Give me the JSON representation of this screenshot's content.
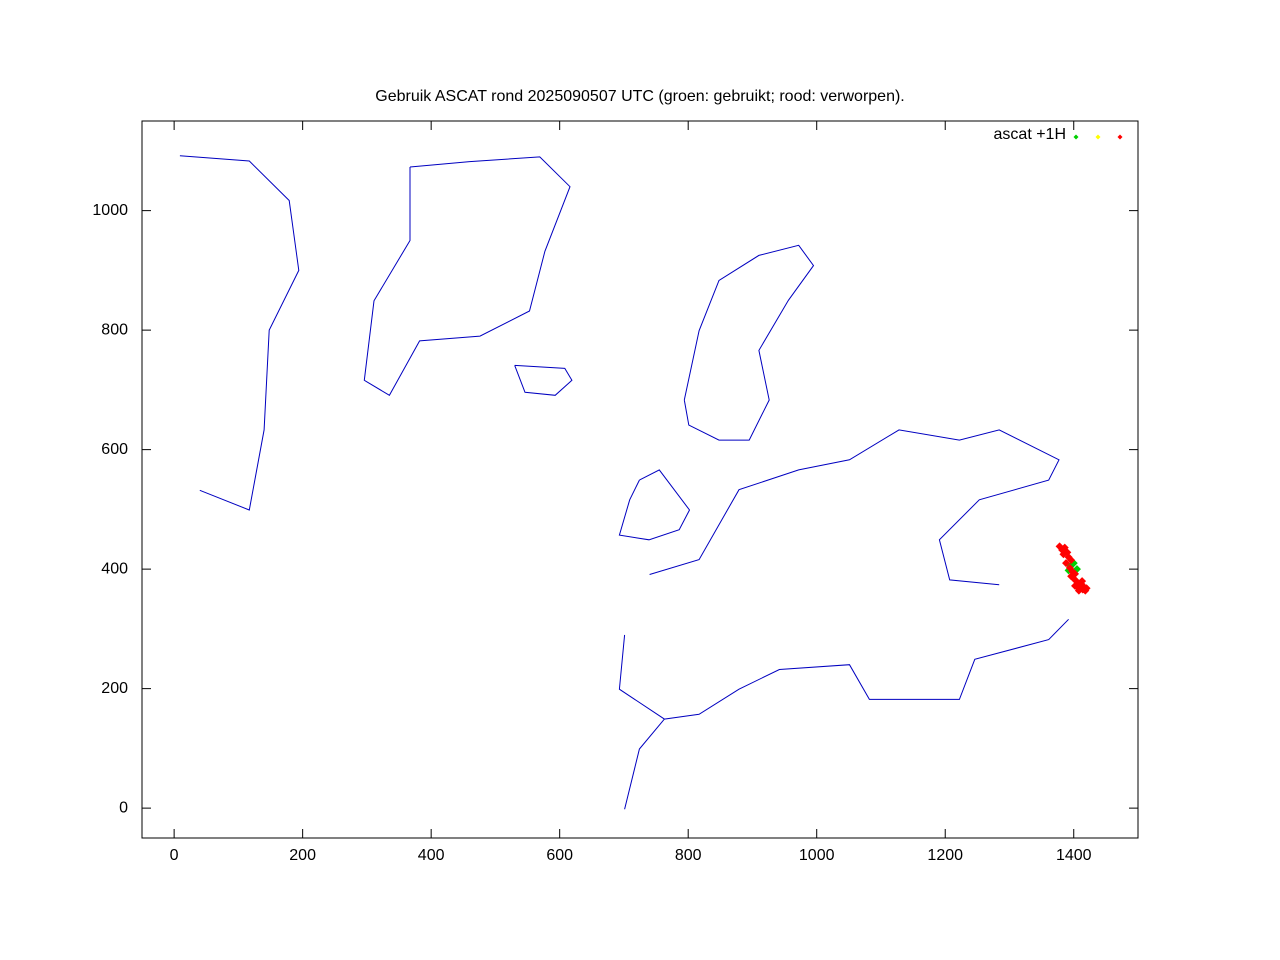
{
  "chart_data": {
    "type": "scatter",
    "title": "Gebruik ASCAT rond 2025090507 UTC (groen: gebruikt; rood: verworpen).",
    "legend_label": "ascat +1H",
    "legend": "top-right",
    "xlim": [
      -50,
      1500
    ],
    "ylim": [
      -50,
      1150
    ],
    "xticks": [
      0,
      200,
      400,
      600,
      800,
      1000,
      1200,
      1400
    ],
    "yticks": [
      0,
      200,
      400,
      600,
      800,
      1000
    ],
    "coastline": {
      "color": "#0000c0",
      "x": [
        367,
        460,
        569,
        616,
        577,
        553,
        476,
        382,
        335,
        296,
        311,
        367,
        367,
        null,
        530,
        608,
        619,
        593,
        546,
        530,
        null,
        794,
        817,
        848,
        910,
        972,
        995,
        956,
        910,
        926,
        895,
        848,
        801,
        794,
        null,
        724,
        755,
        802,
        786,
        739,
        693,
        709,
        724,
        null,
        740,
        817,
        879,
        972,
        1051,
        1128,
        1222,
        1284,
        1377,
        1361,
        1253,
        1191,
        1207,
        1284,
        null,
        701,
        693,
        763,
        817,
        879,
        942,
        1051,
        1082,
        1222,
        1246,
        1361,
        1392,
        null,
        40,
        117,
        140,
        148,
        194,
        179,
        117,
        9,
        null,
        817,
        763,
        724,
        701
      ],
      "y": [
        1073,
        1082,
        1090,
        1040,
        932,
        832,
        790,
        782,
        691,
        716,
        849,
        950,
        1073,
        null,
        741,
        736,
        716,
        691,
        696,
        741,
        null,
        683,
        799,
        883,
        925,
        942,
        908,
        850,
        766,
        683,
        616,
        616,
        641,
        683,
        null,
        549,
        566,
        499,
        466,
        449,
        457,
        516,
        549,
        null,
        391,
        416,
        533,
        566,
        583,
        633,
        616,
        633,
        583,
        549,
        516,
        449,
        382,
        374,
        null,
        290,
        199,
        149,
        157,
        199,
        232,
        240,
        182,
        182,
        249,
        282,
        316,
        null,
        532,
        499,
        633,
        800,
        900,
        1017,
        1083,
        1092,
        null,
        157,
        149,
        99,
        -2
      ]
    },
    "series": [
      {
        "color": "#00d000",
        "x": [
          1395,
          1400,
          1405,
          1392
        ],
        "y": [
          405,
          410,
          400,
          398
        ]
      },
      {
        "color": "#ffff00",
        "x": [],
        "y": []
      },
      {
        "color": "#ff0000",
        "x": [
          1378,
          1382,
          1386,
          1390,
          1384,
          1392,
          1396,
          1388,
          1394,
          1398,
          1402,
          1396,
          1400,
          1404,
          1408,
          1402,
          1406,
          1410,
          1414,
          1408,
          1412,
          1416,
          1418,
          1413,
          1420
        ],
        "y": [
          438,
          432,
          436,
          428,
          425,
          420,
          415,
          410,
          402,
          396,
          392,
          388,
          384,
          380,
          376,
          372,
          370,
          368,
          366,
          364,
          375,
          370,
          364,
          380,
          368
        ]
      }
    ]
  }
}
